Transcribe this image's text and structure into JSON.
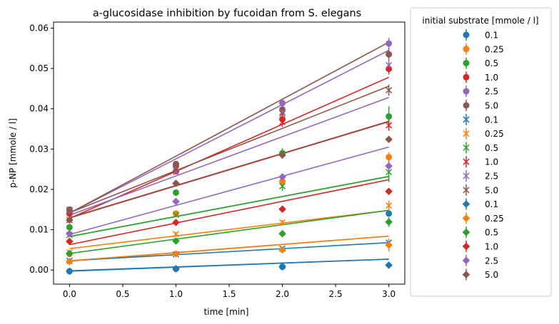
{
  "chart_data": {
    "type": "scatter",
    "title": "a-glucosidase inhibition by fucoidan from S. elegans",
    "xlabel": "time [min]",
    "ylabel": "p-NP [mmole / l]",
    "xlim": [
      -0.15,
      3.15
    ],
    "ylim": [
      -0.0035,
      0.0615
    ],
    "xticks": [
      "0.0",
      "0.5",
      "1.0",
      "1.5",
      "2.0",
      "2.5",
      "3.0"
    ],
    "yticks": [
      "0.00",
      "0.01",
      "0.02",
      "0.03",
      "0.04",
      "0.05",
      "0.06"
    ],
    "grid": false,
    "legend": {
      "title": "initial substrate [mmole / l]",
      "placement": "outside-right"
    },
    "x": [
      0,
      1,
      2,
      3
    ],
    "series": [
      {
        "name": "0.1",
        "marker": "circle",
        "color": "#1f77b4",
        "values": [
          -0.0003,
          0.0003,
          0.0008,
          0.014
        ],
        "errors": [
          0.0004,
          0.0004,
          0.0004,
          0.0006
        ],
        "fit": [
          -0.0002,
          0.0027
        ]
      },
      {
        "name": "0.25",
        "marker": "circle",
        "color": "#ff7f0e",
        "values": [
          0.004,
          0.014,
          0.022,
          0.028
        ],
        "errors": [
          0.0004,
          0.0006,
          0.0006,
          0.0012
        ],
        "fit": [
          0.0022,
          0.0084
        ]
      },
      {
        "name": "0.5",
        "marker": "circle",
        "color": "#2ca02c",
        "values": [
          0.0106,
          0.0192,
          0.029,
          0.0381
        ],
        "errors": [
          0.0004,
          0.0006,
          0.0012,
          0.0025
        ],
        "fit": [
          0.0083,
          0.0232
        ]
      },
      {
        "name": "1.0",
        "marker": "circle",
        "color": "#d62728",
        "values": [
          0.014,
          0.0245,
          0.0374,
          0.0499
        ],
        "errors": [
          0.0004,
          0.0006,
          0.0012,
          0.0014
        ],
        "fit": [
          0.0128,
          0.0478
        ]
      },
      {
        "name": "2.5",
        "marker": "circle",
        "color": "#9467bd",
        "values": [
          0.0148,
          0.0258,
          0.0414,
          0.0562
        ],
        "errors": [
          0.0004,
          0.0006,
          0.0012,
          0.0014
        ],
        "fit": [
          0.0141,
          0.0545
        ]
      },
      {
        "name": "5.0",
        "marker": "circle",
        "color": "#8c564b",
        "values": [
          0.015,
          0.0263,
          0.0398,
          0.0535
        ],
        "errors": [
          0.0004,
          0.0006,
          0.0012,
          0.0014
        ],
        "fit": [
          0.0141,
          0.0565
        ]
      },
      {
        "name": "0.1",
        "marker": "x",
        "color": "#1f77b4",
        "values": [
          0.0023,
          0.0039,
          0.0053,
          0.0068
        ],
        "errors": [
          0.0004,
          0.0004,
          0.0004,
          0.0006
        ],
        "fit": [
          0.0023,
          0.0068
        ]
      },
      {
        "name": "0.25",
        "marker": "x",
        "color": "#ff7f0e",
        "values": [
          0.0044,
          0.0089,
          0.0118,
          0.016
        ],
        "errors": [
          0.0004,
          0.0006,
          0.0006,
          0.0012
        ],
        "fit": [
          0.0053,
          0.0148
        ]
      },
      {
        "name": "0.5",
        "marker": "x",
        "color": "#2ca02c",
        "values": [
          0.0087,
          0.0137,
          0.0208,
          0.0243
        ],
        "errors": [
          0.0004,
          0.0006,
          0.0012,
          0.0025
        ],
        "fit": [
          0.0083,
          0.0232
        ]
      },
      {
        "name": "1.0",
        "marker": "x",
        "color": "#d62728",
        "values": [
          0.0124,
          0.025,
          0.0367,
          0.0359
        ],
        "errors": [
          0.0004,
          0.0006,
          0.0012,
          0.0014
        ],
        "fit": [
          0.0129,
          0.0368
        ]
      },
      {
        "name": "2.5",
        "marker": "x",
        "color": "#9467bd",
        "values": [
          0.0149,
          0.0243,
          0.0392,
          0.0508
        ],
        "errors": [
          0.0004,
          0.0006,
          0.0012,
          0.0014
        ],
        "fit": [
          0.0136,
          0.0428
        ]
      },
      {
        "name": "5.0",
        "marker": "x",
        "color": "#8c564b",
        "values": [
          0.0148,
          0.0249,
          0.0388,
          0.0446
        ],
        "errors": [
          0.0004,
          0.0006,
          0.0012,
          0.0014
        ],
        "fit": [
          0.0142,
          0.0456
        ]
      },
      {
        "name": "0.1",
        "marker": "diamond",
        "color": "#1f77b4",
        "values": [
          -0.0003,
          0.0003,
          0.0008,
          0.0012
        ],
        "errors": [
          0.0004,
          0.0004,
          0.0004,
          0.0006
        ],
        "fit": [
          -0.0003,
          0.0027
        ]
      },
      {
        "name": "0.25",
        "marker": "diamond",
        "color": "#ff7f0e",
        "values": [
          0.0021,
          0.004,
          0.005,
          0.0062
        ],
        "errors": [
          0.0004,
          0.0004,
          0.0006,
          0.0016
        ],
        "fit": [
          0.0023,
          0.0084
        ]
      },
      {
        "name": "0.5",
        "marker": "diamond",
        "color": "#2ca02c",
        "values": [
          0.0041,
          0.0072,
          0.009,
          0.0119
        ],
        "errors": [
          0.0004,
          0.0006,
          0.0006,
          0.0012
        ],
        "fit": [
          0.0041,
          0.0148
        ]
      },
      {
        "name": "1.0",
        "marker": "diamond",
        "color": "#d62728",
        "values": [
          0.0071,
          0.0118,
          0.0151,
          0.0195
        ],
        "errors": [
          0.0004,
          0.0006,
          0.0006,
          0.0006
        ],
        "fit": [
          0.0063,
          0.0224
        ]
      },
      {
        "name": "2.5",
        "marker": "diamond",
        "color": "#9467bd",
        "values": [
          0.009,
          0.017,
          0.0231,
          0.0258
        ],
        "errors": [
          0.0004,
          0.0006,
          0.0006,
          0.0012
        ],
        "fit": [
          0.0088,
          0.0305
        ]
      },
      {
        "name": "5.0",
        "marker": "diamond",
        "color": "#8c564b",
        "values": [
          0.0124,
          0.0215,
          0.0285,
          0.0324
        ],
        "errors": [
          0.0004,
          0.0006,
          0.0006,
          0.0006
        ],
        "fit": [
          0.013,
          0.0369
        ]
      }
    ]
  }
}
